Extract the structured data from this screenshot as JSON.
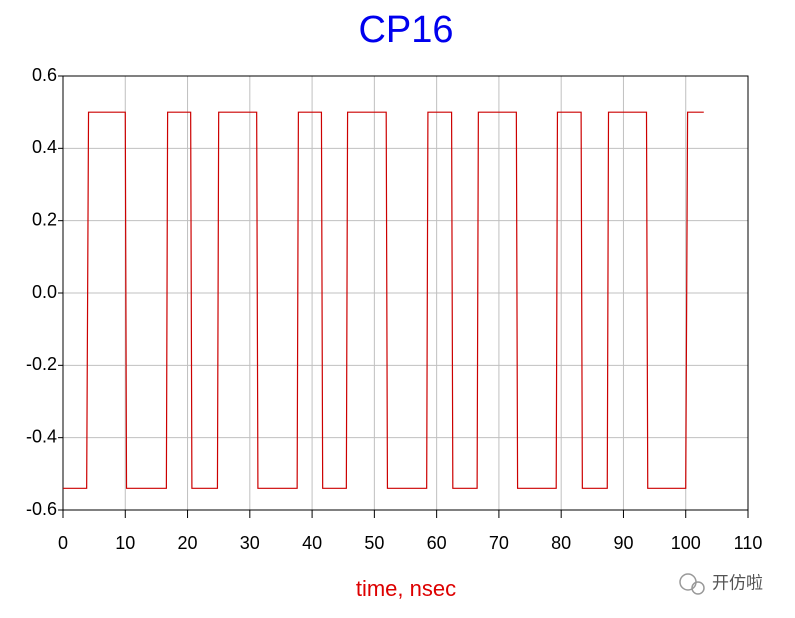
{
  "chart_data": {
    "type": "line",
    "title": "CP16",
    "title_color": "#0000ee",
    "xlabel": "time, nsec",
    "xlabel_color": "#dd0000",
    "watermark": "开仿啦",
    "xlim": [
      0,
      110
    ],
    "xticks": [
      0,
      10,
      20,
      30,
      40,
      50,
      60,
      70,
      80,
      90,
      100,
      110
    ],
    "ylim": [
      -0.6,
      0.6
    ],
    "yticks": [
      -0.6,
      -0.4,
      -0.2,
      {
        "value": 0,
        "label": "0.0"
      },
      0.2,
      0.4,
      0.6
    ],
    "grid": true,
    "series": [
      {
        "color": "#cc0000",
        "x": [
          0,
          3.8,
          4.1,
          10.0,
          10.2,
          16.6,
          16.8,
          20.5,
          20.7,
          24.8,
          25.0,
          31.1,
          31.3,
          37.6,
          37.8,
          41.5,
          41.7,
          45.5,
          45.7,
          51.9,
          52.1,
          58.4,
          58.6,
          62.4,
          62.6,
          66.5,
          66.7,
          72.8,
          73.0,
          79.2,
          79.4,
          83.2,
          83.4,
          87.4,
          87.6,
          93.7,
          93.9,
          100.0,
          100.3,
          102.9
        ],
        "values": [
          -0.54,
          -0.54,
          0.5,
          0.5,
          -0.54,
          -0.54,
          0.5,
          0.5,
          -0.54,
          -0.54,
          0.5,
          0.5,
          -0.54,
          -0.54,
          0.5,
          0.5,
          -0.54,
          -0.54,
          0.5,
          0.5,
          -0.54,
          -0.54,
          0.5,
          0.5,
          -0.54,
          -0.54,
          0.5,
          0.5,
          -0.54,
          -0.54,
          0.5,
          0.5,
          -0.54,
          -0.54,
          0.5,
          0.5,
          -0.54,
          -0.54,
          0.5,
          0.5
        ]
      }
    ]
  }
}
